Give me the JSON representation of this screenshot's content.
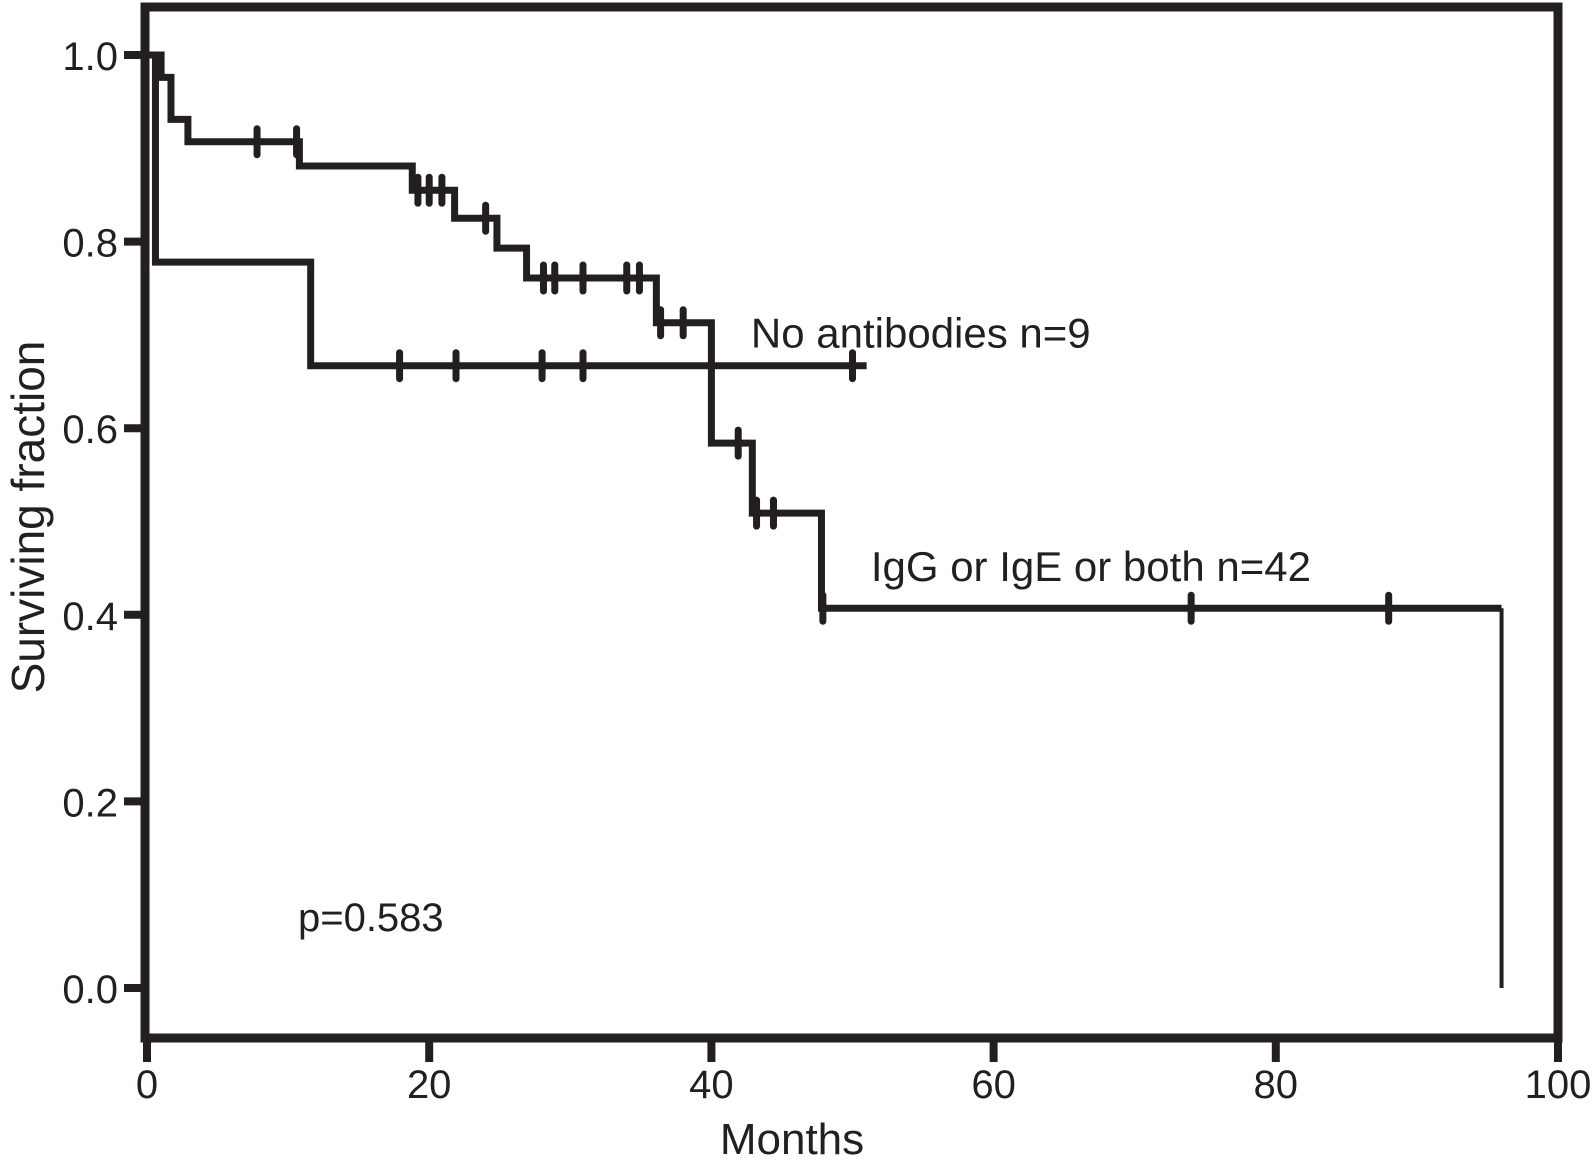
{
  "chart_data": {
    "type": "line",
    "chart_kind": "kaplan-meier-survival-step",
    "title": "",
    "xlabel": "Months",
    "ylabel": "Surviving fraction",
    "x_range": [
      0,
      100
    ],
    "y_range": [
      0.0,
      1.0
    ],
    "grid": false,
    "legend_position": "inline-labels",
    "ink_color": "#231f20",
    "x_ticks": [
      {
        "v": 0,
        "label": "0"
      },
      {
        "v": 20,
        "label": "20"
      },
      {
        "v": 40,
        "label": "40"
      },
      {
        "v": 60,
        "label": "60"
      },
      {
        "v": 80,
        "label": "80"
      },
      {
        "v": 100,
        "label": "100"
      }
    ],
    "y_ticks": [
      {
        "v": 1.0,
        "label": "1.0"
      },
      {
        "v": 0.8,
        "label": "0.8"
      },
      {
        "v": 0.6,
        "label": "0.6"
      },
      {
        "v": 0.4,
        "label": "0.4"
      },
      {
        "v": 0.2,
        "label": "0.2"
      },
      {
        "v": 0.0,
        "label": "0.0"
      }
    ],
    "series": [
      {
        "name": "No antibodies n=9",
        "n": 9,
        "steps": [
          [
            0,
            1.0
          ],
          [
            0.6,
            0.778
          ],
          [
            11.6,
            0.667
          ]
        ],
        "end_t": 51,
        "censor_marks": [
          [
            17.9,
            0.667
          ],
          [
            21.9,
            0.667
          ],
          [
            28.0,
            0.667
          ],
          [
            30.9,
            0.667
          ],
          [
            50.0,
            0.667
          ]
        ],
        "label": {
          "text": "No antibodies n=9",
          "t": 42.8,
          "s": 0.702
        }
      },
      {
        "name": "IgG or IgE or both n=42",
        "n": 42,
        "steps": [
          [
            0,
            1.0
          ],
          [
            1.0,
            0.976
          ],
          [
            1.7,
            0.931
          ],
          [
            2.9,
            0.907
          ],
          [
            10.8,
            0.881
          ],
          [
            18.8,
            0.855
          ],
          [
            21.8,
            0.825
          ],
          [
            24.8,
            0.793
          ],
          [
            26.9,
            0.761
          ],
          [
            36.1,
            0.713
          ],
          [
            40.0,
            0.584
          ],
          [
            42.9,
            0.509
          ],
          [
            47.8,
            0.407
          ]
        ],
        "end_t": 96,
        "final_drop_to": 0.0,
        "censor_marks": [
          [
            7.8,
            0.907
          ],
          [
            10.6,
            0.907
          ],
          [
            19.2,
            0.855
          ],
          [
            20.0,
            0.855
          ],
          [
            20.9,
            0.855
          ],
          [
            24.0,
            0.825
          ],
          [
            28.1,
            0.761
          ],
          [
            28.9,
            0.761
          ],
          [
            30.9,
            0.761
          ],
          [
            34.0,
            0.761
          ],
          [
            34.9,
            0.761
          ],
          [
            36.4,
            0.713
          ],
          [
            38.0,
            0.713
          ],
          [
            41.9,
            0.584
          ],
          [
            43.2,
            0.509
          ],
          [
            44.4,
            0.509
          ],
          [
            47.9,
            0.407
          ],
          [
            74.0,
            0.407
          ],
          [
            88.0,
            0.407
          ]
        ],
        "label": {
          "text": "IgG or IgE or both n=42",
          "t": 51.3,
          "s": 0.452
        }
      }
    ],
    "annotations": [
      {
        "text": "p=0.583",
        "t": 10.7,
        "s": 0.075
      }
    ]
  }
}
